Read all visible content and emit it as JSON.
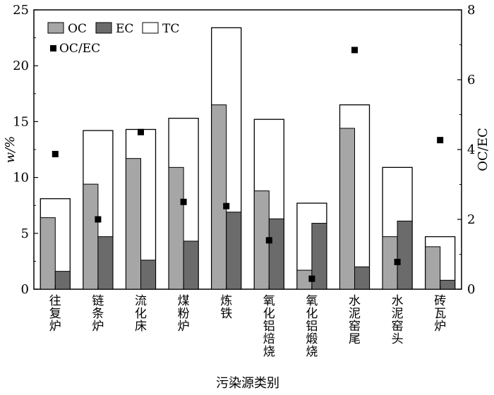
{
  "chart_data": {
    "type": "bar",
    "categories": [
      "往复炉",
      "链条炉",
      "流化床",
      "煤粉炉",
      "炼铁",
      "氧化铝焙烧",
      "氧化铝煅烧",
      "水泥窑尾",
      "水泥窑头",
      "砖瓦炉"
    ],
    "series": [
      {
        "name": "OC",
        "axis": "left",
        "color": "#a6a6a6",
        "values": [
          6.4,
          9.4,
          11.7,
          10.9,
          16.5,
          8.8,
          1.7,
          14.4,
          4.7,
          3.8
        ]
      },
      {
        "name": "EC",
        "axis": "left",
        "color": "#6b6b6b",
        "values": [
          1.6,
          4.7,
          2.6,
          4.3,
          6.9,
          6.3,
          5.9,
          2.0,
          6.1,
          0.8
        ]
      },
      {
        "name": "TC",
        "axis": "left",
        "color": "#ffffff",
        "values": [
          8.1,
          14.2,
          14.3,
          15.3,
          23.4,
          15.2,
          7.7,
          16.5,
          10.9,
          4.7
        ]
      },
      {
        "name": "OC/EC",
        "axis": "right",
        "marker": "square",
        "color": "#000000",
        "values": [
          3.87,
          2.0,
          4.5,
          2.5,
          2.38,
          1.4,
          0.3,
          6.85,
          0.78,
          4.27
        ]
      }
    ],
    "xlabel": "污染源类别",
    "ylabel": "w/%",
    "ylabel_right": "OC/EC",
    "ylim": [
      0,
      25
    ],
    "ylim_right": [
      0,
      8
    ],
    "yticks": [
      "0",
      "5",
      "10",
      "15",
      "20",
      "25"
    ],
    "yticks_right": [
      "0",
      "2",
      "4",
      "6",
      "8"
    ],
    "legend": {
      "placement": "top-left",
      "entries": [
        "OC",
        "EC",
        "TC",
        "OC/EC"
      ]
    },
    "grid": false
  }
}
